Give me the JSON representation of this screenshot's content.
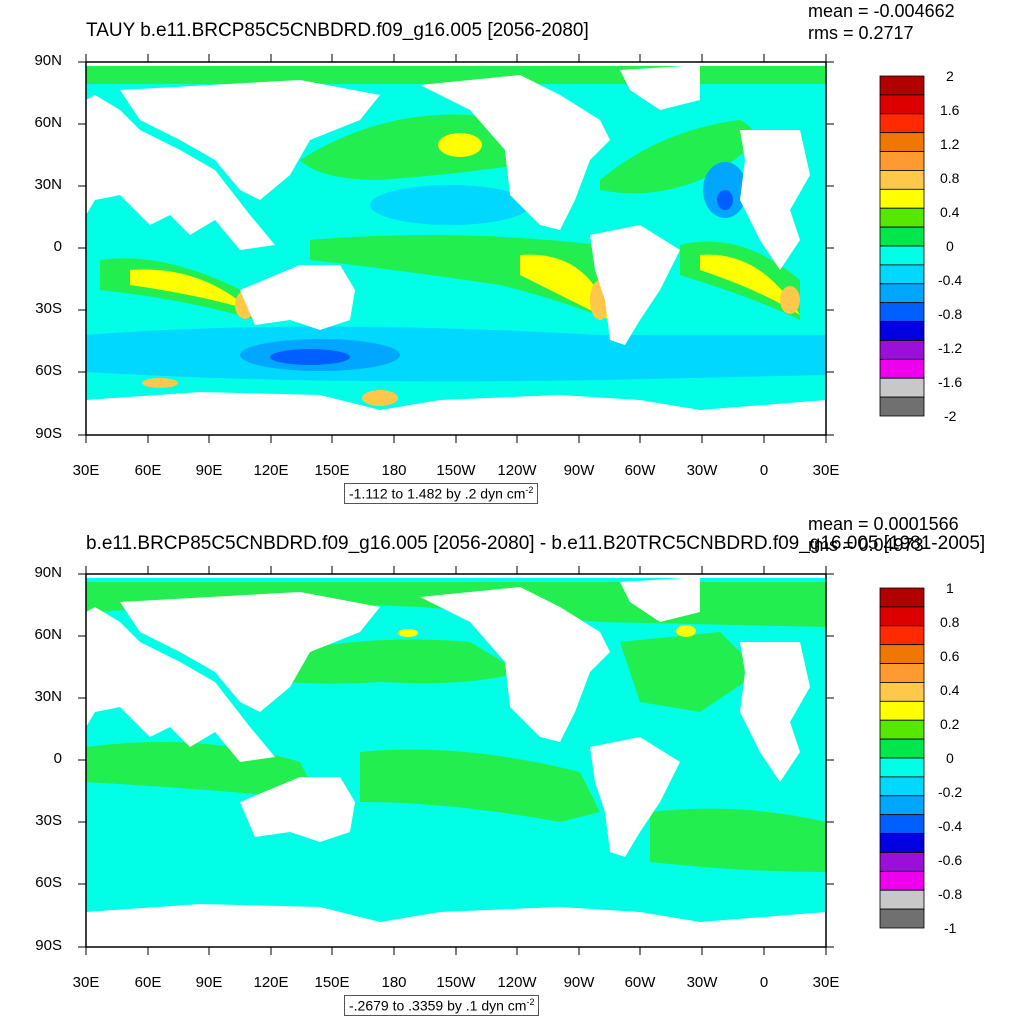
{
  "panels": [
    {
      "title": "TAUY b.e11.BRCP85C5CNBDRD.f09_g16.005 [2056-2080]",
      "mean_text": "mean = -0.004662",
      "rms_text": "rms = 0.2717",
      "range_text": "-1.112 to 1.482 by .2 dyn cm",
      "range_unit_exp": "-2",
      "colorbar_labels": [
        "2",
        "1.6",
        "1.2",
        "0.8",
        "0.4",
        "0",
        "-0.4",
        "-0.8",
        "-1.2",
        "-1.6",
        "-2"
      ]
    },
    {
      "title": "b.e11.BRCP85C5CNBDRD.f09_g16.005 [2056-2080] - b.e11.B20TRC5CNBDRD.f09_g16.005 [1981-2005]",
      "mean_text": "mean = 0.0001566",
      "rms_text": "rms = 0.04973",
      "range_text": "-.2679 to .3359 by .1 dyn cm",
      "range_unit_exp": "-2",
      "colorbar_labels": [
        "1",
        "0.8",
        "0.6",
        "0.4",
        "0.2",
        "0",
        "-0.2",
        "-0.4",
        "-0.6",
        "-0.8",
        "-1"
      ]
    }
  ],
  "lat_labels": [
    "90N",
    "60N",
    "30N",
    "0",
    "30S",
    "60S",
    "90S"
  ],
  "lon_labels": [
    "30E",
    "60E",
    "90E",
    "120E",
    "150E",
    "180",
    "150W",
    "120W",
    "90W",
    "60W",
    "30W",
    "0",
    "30E"
  ],
  "colorbar_colors": [
    "#b00000",
    "#dd0000",
    "#ff2a00",
    "#f07800",
    "#ff9a30",
    "#ffc84a",
    "#ffff00",
    "#55e800",
    "#00e64b",
    "#00ffe6",
    "#00d8ff",
    "#00a6ff",
    "#0060ff",
    "#0000e0",
    "#9a10d8",
    "#ee00ee",
    "#c8c8c8",
    "#707070"
  ],
  "map_colors": {
    "land": "#ffffff",
    "green": "#22ee50",
    "lightgreen": "#66ee22",
    "cyan": "#00ffe6",
    "lightblue": "#00d8ff",
    "blue": "#00a6ff",
    "darkblue": "#0060ff",
    "yellow": "#ffff00",
    "orange": "#ffc84a",
    "red": "#e03000"
  }
}
